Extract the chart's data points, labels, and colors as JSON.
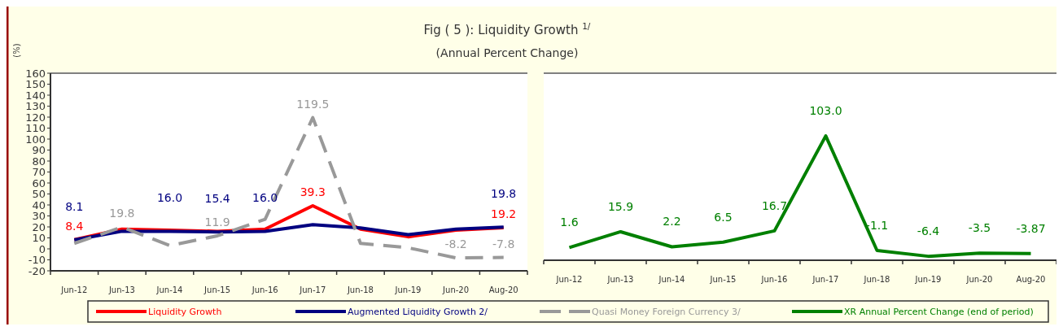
{
  "chart_data": [
    {
      "type": "line",
      "title": "Fig ( 5 ): Liquidity Growth $^{1/}$",
      "subtitle": "(Annual Percent Change)",
      "ylabel": "(%)",
      "categories": [
        "Jun-12",
        "Jun-13",
        "Jun-14",
        "Jun-15",
        "Jun-16",
        "Jun-17",
        "Jun-18",
        "Jun-19",
        "Jun-20",
        "Aug-20"
      ],
      "ylim": [
        -20,
        160
      ],
      "yticks": [
        -20,
        -10,
        0,
        10,
        20,
        30,
        40,
        50,
        60,
        70,
        80,
        90,
        100,
        110,
        120,
        130,
        140,
        150,
        160
      ],
      "legend": "bottom",
      "grid": false,
      "marker": "none",
      "series": [
        {
          "name": "Liquidity Growth",
          "color": "#ff0000",
          "values": [
            8.4,
            18,
            17,
            16,
            18,
            39.3,
            18,
            11,
            17,
            19.2
          ],
          "value_labels": [
            "8.4",
            null,
            null,
            null,
            null,
            "39.3",
            null,
            null,
            null,
            "19.2"
          ]
        },
        {
          "name": "Augmented Liquidity Growth 2/",
          "color": "#000080",
          "values": [
            8.1,
            16,
            16.0,
            15.4,
            16.0,
            22,
            19,
            13,
            18,
            19.8
          ],
          "value_labels": [
            "8.1",
            null,
            "16.0",
            "15.4",
            "16.0",
            null,
            null,
            null,
            null,
            "19.8"
          ]
        },
        {
          "name": "Quasi Money Foreign Currency 3/",
          "color": "#999999",
          "line_style": "dashed",
          "values": [
            5,
            19.8,
            3,
            11.9,
            27,
            119.5,
            5,
            1,
            -8.2,
            -7.8
          ],
          "value_labels": [
            null,
            "19.8",
            null,
            "11.9",
            null,
            "119.5",
            null,
            null,
            "-8.2",
            "-7.8"
          ]
        }
      ]
    },
    {
      "type": "line",
      "categories": [
        "Jun-12",
        "Jun-13",
        "Jun-14",
        "Jun-15",
        "Jun-16",
        "Jun-17",
        "Jun-18",
        "Jun-19",
        "Jun-20",
        "Aug-20"
      ],
      "ylim": [
        -10,
        160
      ],
      "tick_labels": "x",
      "legend": "bottom",
      "grid": false,
      "marker": "none",
      "series": [
        {
          "name": "XR Annual Percent Change (end of period)",
          "color": "#008000",
          "values": [
            1.6,
            15.9,
            2.2,
            6.5,
            16.7,
            103.0,
            -1.1,
            -6.4,
            -3.5,
            -3.87
          ],
          "value_labels": [
            "1.6",
            "15.9",
            "2.2",
            "6.5",
            "16.7",
            "103.0",
            "-1.1",
            "-6.4",
            "-3.5",
            "-3.87"
          ]
        }
      ]
    }
  ]
}
